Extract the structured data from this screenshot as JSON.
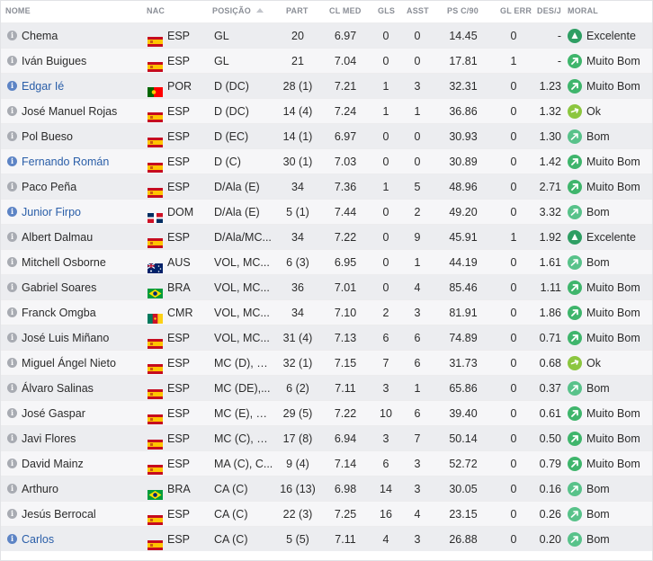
{
  "columns": {
    "name": "NOME",
    "nat": "NAC",
    "pos": "POSIÇÃO",
    "part": "PART",
    "clmed": "CL MED",
    "gls": "GLS",
    "asst": "ASST",
    "ps": "PS C/90",
    "glerr": "GL ERR",
    "des": "DES/J",
    "moral": "MORAL"
  },
  "colors": {
    "excelente": "#2e9e63",
    "muito_bom": "#3fb56c",
    "bom": "#58c28a",
    "ok": "#8cc63f"
  },
  "players": [
    {
      "name": "Chema",
      "link": false,
      "flag": "ESP",
      "nat": "ESP",
      "pos": "GL",
      "part": "20",
      "clmed": "6.97",
      "gls": "0",
      "asst": "0",
      "ps": "14.45",
      "glerr": "0",
      "des": "-",
      "moral": "Excelente",
      "mood": "excelente"
    },
    {
      "name": "Iván Buigues",
      "link": false,
      "flag": "ESP",
      "nat": "ESP",
      "pos": "GL",
      "part": "21",
      "clmed": "7.04",
      "gls": "0",
      "asst": "0",
      "ps": "17.81",
      "glerr": "1",
      "des": "-",
      "moral": "Muito Bom",
      "mood": "muito_bom"
    },
    {
      "name": "Edgar Ié",
      "link": true,
      "flag": "POR",
      "nat": "POR",
      "pos": "D (DC)",
      "part": "28 (1)",
      "clmed": "7.21",
      "gls": "1",
      "asst": "3",
      "ps": "32.31",
      "glerr": "0",
      "des": "1.23",
      "moral": "Muito Bom",
      "mood": "muito_bom"
    },
    {
      "name": "José Manuel Rojas",
      "link": false,
      "flag": "ESP",
      "nat": "ESP",
      "pos": "D (DC)",
      "part": "14 (4)",
      "clmed": "7.24",
      "gls": "1",
      "asst": "1",
      "ps": "36.86",
      "glerr": "0",
      "des": "1.32",
      "moral": "Ok",
      "mood": "ok"
    },
    {
      "name": "Pol Bueso",
      "link": false,
      "flag": "ESP",
      "nat": "ESP",
      "pos": "D (EC)",
      "part": "14 (1)",
      "clmed": "6.97",
      "gls": "0",
      "asst": "0",
      "ps": "30.93",
      "glerr": "0",
      "des": "1.30",
      "moral": "Bom",
      "mood": "bom"
    },
    {
      "name": "Fernando Román",
      "link": true,
      "flag": "ESP",
      "nat": "ESP",
      "pos": "D (C)",
      "part": "30 (1)",
      "clmed": "7.03",
      "gls": "0",
      "asst": "0",
      "ps": "30.89",
      "glerr": "0",
      "des": "1.42",
      "moral": "Muito Bom",
      "mood": "muito_bom"
    },
    {
      "name": "Paco Peña",
      "link": false,
      "flag": "ESP",
      "nat": "ESP",
      "pos": "D/Ala (E)",
      "part": "34",
      "clmed": "7.36",
      "gls": "1",
      "asst": "5",
      "ps": "48.96",
      "glerr": "0",
      "des": "2.71",
      "moral": "Muito Bom",
      "mood": "muito_bom"
    },
    {
      "name": "Junior Firpo",
      "link": true,
      "flag": "DOM",
      "nat": "DOM",
      "pos": "D/Ala (E)",
      "part": "5 (1)",
      "clmed": "7.44",
      "gls": "0",
      "asst": "2",
      "ps": "49.20",
      "glerr": "0",
      "des": "3.32",
      "moral": "Bom",
      "mood": "bom"
    },
    {
      "name": "Albert Dalmau",
      "link": false,
      "flag": "ESP",
      "nat": "ESP",
      "pos": "D/Ala/MC...",
      "part": "34",
      "clmed": "7.22",
      "gls": "0",
      "asst": "9",
      "ps": "45.91",
      "glerr": "1",
      "des": "1.92",
      "moral": "Excelente",
      "mood": "excelente"
    },
    {
      "name": "Mitchell Osborne",
      "link": false,
      "flag": "AUS",
      "nat": "AUS",
      "pos": "VOL, MC...",
      "part": "6 (3)",
      "clmed": "6.95",
      "gls": "0",
      "asst": "1",
      "ps": "44.19",
      "glerr": "0",
      "des": "1.61",
      "moral": "Bom",
      "mood": "bom"
    },
    {
      "name": "Gabriel Soares",
      "link": false,
      "flag": "BRA",
      "nat": "BRA",
      "pos": "VOL, MC...",
      "part": "36",
      "clmed": "7.01",
      "gls": "0",
      "asst": "4",
      "ps": "85.46",
      "glerr": "0",
      "des": "1.11",
      "moral": "Muito Bom",
      "mood": "muito_bom"
    },
    {
      "name": "Franck Omgba",
      "link": false,
      "flag": "CMR",
      "nat": "CMR",
      "pos": "VOL, MC...",
      "part": "34",
      "clmed": "7.10",
      "gls": "2",
      "asst": "3",
      "ps": "81.91",
      "glerr": "0",
      "des": "1.86",
      "moral": "Muito Bom",
      "mood": "muito_bom"
    },
    {
      "name": "José Luis Miñano",
      "link": false,
      "flag": "ESP",
      "nat": "ESP",
      "pos": "VOL, MC...",
      "part": "31 (4)",
      "clmed": "7.13",
      "gls": "6",
      "asst": "6",
      "ps": "74.89",
      "glerr": "0",
      "des": "0.71",
      "moral": "Muito Bom",
      "mood": "muito_bom"
    },
    {
      "name": "Miguel Ángel Nieto",
      "link": false,
      "flag": "ESP",
      "nat": "ESP",
      "pos": "MC (D), M...",
      "part": "32 (1)",
      "clmed": "7.15",
      "gls": "7",
      "asst": "6",
      "ps": "31.73",
      "glerr": "0",
      "des": "0.68",
      "moral": "Ok",
      "mood": "ok"
    },
    {
      "name": "Álvaro Salinas",
      "link": false,
      "flag": "ESP",
      "nat": "ESP",
      "pos": "MC (DE),...",
      "part": "6 (2)",
      "clmed": "7.11",
      "gls": "3",
      "asst": "1",
      "ps": "65.86",
      "glerr": "0",
      "des": "0.37",
      "moral": "Bom",
      "mood": "bom"
    },
    {
      "name": "José Gaspar",
      "link": false,
      "flag": "ESP",
      "nat": "ESP",
      "pos": "MC (E), M...",
      "part": "29 (5)",
      "clmed": "7.22",
      "gls": "10",
      "asst": "6",
      "ps": "39.40",
      "glerr": "0",
      "des": "0.61",
      "moral": "Muito Bom",
      "mood": "muito_bom"
    },
    {
      "name": "Javi Flores",
      "link": false,
      "flag": "ESP",
      "nat": "ESP",
      "pos": "MC (C), M...",
      "part": "17 (8)",
      "clmed": "6.94",
      "gls": "3",
      "asst": "7",
      "ps": "50.14",
      "glerr": "0",
      "des": "0.50",
      "moral": "Muito Bom",
      "mood": "muito_bom"
    },
    {
      "name": "David Mainz",
      "link": false,
      "flag": "ESP",
      "nat": "ESP",
      "pos": "MA (C), C...",
      "part": "9 (4)",
      "clmed": "7.14",
      "gls": "6",
      "asst": "3",
      "ps": "52.72",
      "glerr": "0",
      "des": "0.79",
      "moral": "Muito Bom",
      "mood": "muito_bom"
    },
    {
      "name": "Arthuro",
      "link": false,
      "flag": "BRA",
      "nat": "BRA",
      "pos": "CA (C)",
      "part": "16 (13)",
      "clmed": "6.98",
      "gls": "14",
      "asst": "3",
      "ps": "30.05",
      "glerr": "0",
      "des": "0.16",
      "moral": "Bom",
      "mood": "bom"
    },
    {
      "name": "Jesús Berrocal",
      "link": false,
      "flag": "ESP",
      "nat": "ESP",
      "pos": "CA (C)",
      "part": "22 (3)",
      "clmed": "7.25",
      "gls": "16",
      "asst": "4",
      "ps": "23.15",
      "glerr": "0",
      "des": "0.26",
      "moral": "Bom",
      "mood": "bom"
    },
    {
      "name": "Carlos",
      "link": true,
      "flag": "ESP",
      "nat": "ESP",
      "pos": "CA (C)",
      "part": "5 (5)",
      "clmed": "7.11",
      "gls": "4",
      "asst": "3",
      "ps": "26.88",
      "glerr": "0",
      "des": "0.20",
      "moral": "Bom",
      "mood": "bom"
    }
  ]
}
